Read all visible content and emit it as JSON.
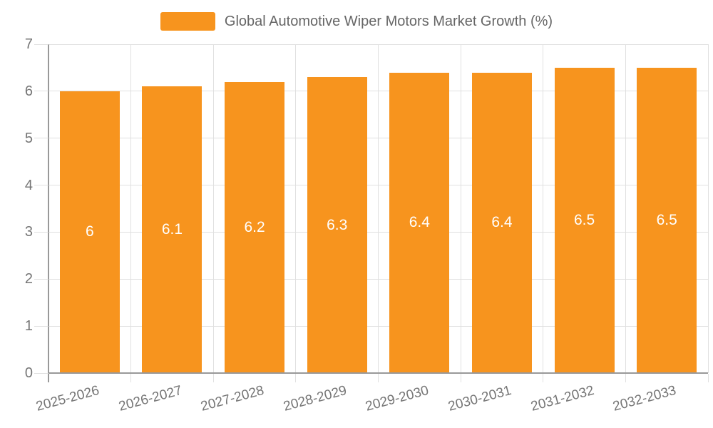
{
  "chart_data": {
    "type": "bar",
    "title": "Global Automotive Wiper Motors Market Growth (%)",
    "categories": [
      "2025-2026",
      "2026-2027",
      "2027-2028",
      "2028-2029",
      "2029-2030",
      "2030-2031",
      "2031-2032",
      "2032-2033"
    ],
    "values": [
      6,
      6.1,
      6.2,
      6.3,
      6.4,
      6.4,
      6.5,
      6.5
    ],
    "bar_labels": [
      "6",
      "6.1",
      "6.2",
      "6.3",
      "6.4",
      "6.4",
      "6.5",
      "6.5"
    ],
    "xlabel": "",
    "ylabel": "",
    "ylim": [
      0,
      7
    ],
    "y_ticks": [
      "0",
      "1",
      "2",
      "3",
      "4",
      "5",
      "6",
      "7"
    ],
    "grid": true,
    "legend_position": "top",
    "bar_label_position": "inside-center",
    "colors": {
      "bar": "#F7941E",
      "axis_line": "#999999",
      "grid_line": "#e0e0e0",
      "tick_label": "#757575",
      "legend_text": "#666666",
      "bar_label": "#ffffff",
      "background": "#ffffff"
    }
  }
}
